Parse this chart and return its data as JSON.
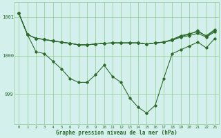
{
  "title": "Graphe pression niveau de la mer (hPa)",
  "bg_color": "#d4f0ec",
  "grid_color": "#8fc88f",
  "line_color": "#2d6b2d",
  "xlim_min": -0.5,
  "xlim_max": 23.5,
  "ylim_min": 998.2,
  "ylim_max": 1001.4,
  "yticks": [
    999,
    1000,
    1001
  ],
  "xticks": [
    0,
    1,
    2,
    3,
    4,
    5,
    6,
    7,
    8,
    9,
    10,
    11,
    12,
    13,
    14,
    15,
    16,
    17,
    18,
    19,
    20,
    21,
    22,
    23
  ],
  "line_deep": [
    1001.1,
    1000.55,
    1000.1,
    1000.05,
    999.85,
    999.65,
    999.4,
    999.3,
    999.3,
    999.5,
    999.75,
    999.45,
    999.3,
    998.9,
    998.65,
    998.5,
    998.7,
    999.4,
    1000.05,
    1000.15,
    1000.25,
    1000.35,
    1000.2,
    1000.45
  ],
  "line_flat1": [
    1001.1,
    1000.55,
    1000.45,
    1000.42,
    1000.38,
    1000.35,
    1000.32,
    1000.28,
    1000.28,
    1000.3,
    1000.32,
    1000.33,
    1000.33,
    1000.33,
    1000.33,
    1000.3,
    1000.33,
    1000.35,
    1000.4,
    1000.48,
    1000.52,
    1000.58,
    1000.48,
    1000.62
  ],
  "line_flat2": [
    1001.1,
    1000.55,
    1000.45,
    1000.42,
    1000.38,
    1000.35,
    1000.32,
    1000.28,
    1000.28,
    1000.3,
    1000.32,
    1000.33,
    1000.33,
    1000.33,
    1000.33,
    1000.3,
    1000.33,
    1000.35,
    1000.4,
    1000.5,
    1000.55,
    1000.65,
    1000.5,
    1000.65
  ],
  "line_flat3": [
    1001.1,
    1000.55,
    1000.45,
    1000.42,
    1000.38,
    1000.35,
    1000.32,
    1000.28,
    1000.28,
    1000.3,
    1000.32,
    1000.33,
    1000.33,
    1000.33,
    1000.33,
    1000.3,
    1000.33,
    1000.35,
    1000.42,
    1000.52,
    1000.57,
    1000.62,
    1000.52,
    1000.68
  ]
}
